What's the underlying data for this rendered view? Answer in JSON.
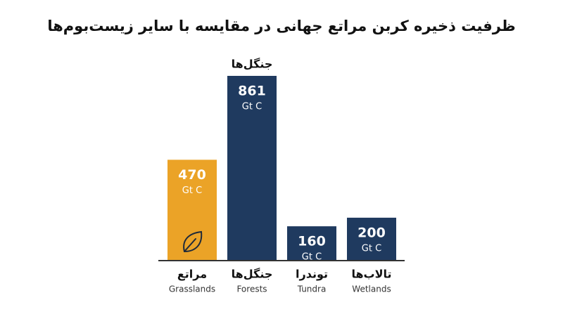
{
  "chart_data": {
    "type": "bar",
    "title": "ظرفیت ذخیره کربن مراتع جهانی در مقایسه با سایر زیست‌بوم‌ها",
    "categories": [
      "مراتع",
      "جنگل‌ها",
      "توندرا",
      "تالاب‌ها"
    ],
    "categories_en": [
      "Grasslands",
      "Forests",
      "Tundra",
      "Wetlands"
    ],
    "values": [
      470,
      861,
      160,
      200
    ],
    "unit": "Gt C",
    "colors": [
      "#eba327",
      "#1f3a5f",
      "#1f3a5f",
      "#1f3a5f"
    ],
    "annotation": "جنگل‌ها"
  }
}
